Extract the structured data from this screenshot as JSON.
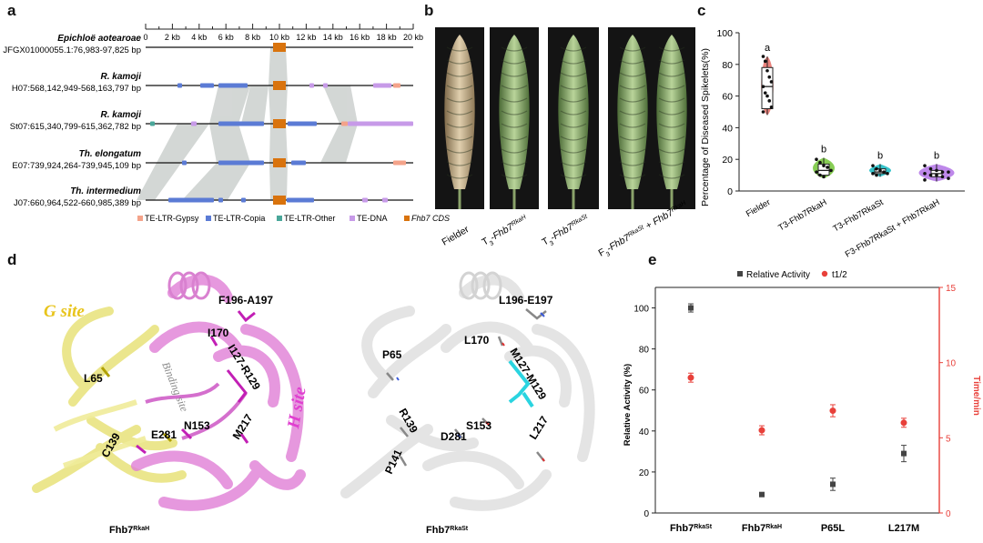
{
  "panel_letters": [
    "a",
    "b",
    "c",
    "d",
    "e"
  ],
  "panel_a": {
    "scale_ticks": [
      "0",
      "2 kb",
      "4 kb",
      "6 kb",
      "8 kb",
      "10 kb",
      "12 kb",
      "14 kb",
      "16 kb",
      "18 kb",
      "20 kb"
    ],
    "tracks": [
      {
        "species": "Epichloë aotearoae",
        "locus": "JFGX01000055.1:76,983-97,825 bp"
      },
      {
        "species": "R. kamoji",
        "locus": "H07:568,142,949-568,163,797 bp"
      },
      {
        "species": "R. kamoji",
        "locus": "St07:615,340,799-615,362,782 bp"
      },
      {
        "species": "Th. elongatum",
        "locus": "E07:739,924,264-739,945,109 bp"
      },
      {
        "species": "Th. intermedium",
        "locus": "J07:660,964,522-660,985,389 bp"
      }
    ],
    "legend": [
      {
        "label": "TE-LTR-Gypsy",
        "color": "#f4a38a"
      },
      {
        "label": "TE-LTR-Copia",
        "color": "#5b7bd5"
      },
      {
        "label": "TE-LTR-Other",
        "color": "#4aa79a"
      },
      {
        "label": "TE-DNA",
        "color": "#c79ae8"
      },
      {
        "label": "Fhb7 CDS",
        "color": "#d9730d"
      }
    ]
  },
  "panel_b": {
    "labels": [
      {
        "pre": "Fielder",
        "main": "",
        "sup": "",
        "post": ""
      },
      {
        "pre": "T",
        "sub": "3",
        "main": "-Fhb7",
        "sup": "RkaH",
        "post": ""
      },
      {
        "pre": "T",
        "sub": "3",
        "main": "-Fhb7",
        "sup": "RkaSt",
        "post": ""
      },
      {
        "pre": "F",
        "sub": "3",
        "main": "-Fhb7",
        "sup": "RkaSt",
        "post": " + Fhb7",
        "sup2": "RkaH"
      }
    ]
  },
  "panel_c": {
    "chart_data": {
      "type": "violin",
      "ylabel": "Percentage of Diseased Spikelets(%)",
      "ylim": [
        0,
        100
      ],
      "yticks": [
        0,
        20,
        40,
        60,
        80,
        100
      ],
      "groups": [
        {
          "label": "Fielder",
          "median": 66,
          "q1": 52,
          "q3": 78,
          "min": 48,
          "max": 85,
          "letter": "a",
          "color": "#e8746e",
          "points": [
            85,
            82,
            76,
            72,
            69,
            66,
            62,
            60,
            57,
            53,
            50
          ]
        },
        {
          "label": "T3-Fhb7RkaH",
          "median": 13,
          "q1": 10,
          "q3": 17,
          "min": 8,
          "max": 21,
          "letter": "b",
          "color": "#7bc943",
          "points": [
            20,
            18,
            16,
            15,
            13,
            12,
            10,
            9
          ]
        },
        {
          "label": "T3-Fhb7RkaSt",
          "median": 12,
          "q1": 11,
          "q3": 14,
          "min": 9,
          "max": 17,
          "letter": "b",
          "color": "#1fbcc4",
          "points": [
            16,
            14,
            13,
            12,
            11,
            11,
            10
          ]
        },
        {
          "label": "F3-Fhb7RkaSt + Fhb7RkaH",
          "median": 11,
          "q1": 9,
          "q3": 13,
          "min": 6,
          "max": 17,
          "letter": "b",
          "color": "#b77be8",
          "points": [
            16,
            14,
            13,
            12,
            12,
            11,
            10,
            10,
            9,
            8,
            7
          ]
        }
      ]
    }
  },
  "panel_d": {
    "left": {
      "title": "Fhb7",
      "title_sup": "RkaH",
      "site_g": "G site",
      "site_h": "H site",
      "binding": "Binding site",
      "residues": [
        "F196-A197",
        "I170",
        "I127-R129",
        "L65",
        "N153",
        "C139",
        "E281",
        "M217"
      ]
    },
    "right": {
      "title": "Fhb7",
      "title_sup": "RkaSt",
      "residues": [
        "L196-E197",
        "L170",
        "M127-M129",
        "P65",
        "R139",
        "S153",
        "D281",
        "L217",
        "P141"
      ]
    }
  },
  "panel_e": {
    "chart_data": {
      "type": "scatter",
      "legend": [
        "Relative Activity",
        "t1/2"
      ],
      "ylabel_left": "Relative Activity (%)",
      "ylabel_right": "Time/min",
      "ylim_left": [
        0,
        110
      ],
      "ylim_right": [
        0,
        15
      ],
      "yticks_left": [
        0,
        20,
        40,
        60,
        80,
        100
      ],
      "yticks_right": [
        0,
        5,
        10,
        15
      ],
      "categories": [
        {
          "name": "Fhb7",
          "sup": "RkaSt"
        },
        {
          "name": "Fhb7",
          "sup": "RkaH"
        },
        {
          "name": "P65L",
          "sup": ""
        },
        {
          "name": "L217M",
          "sup": ""
        }
      ],
      "series": [
        {
          "name": "Relative Activity",
          "axis": "left",
          "color": "#444444",
          "values": [
            100,
            9,
            14,
            29
          ],
          "errors": [
            2,
            0,
            3,
            4
          ]
        },
        {
          "name": "t1/2",
          "axis": "right",
          "color": "#e8403a",
          "values": [
            9.0,
            5.5,
            6.8,
            6.0
          ],
          "errors": [
            0.3,
            0.3,
            0.4,
            0.3
          ]
        }
      ]
    }
  }
}
